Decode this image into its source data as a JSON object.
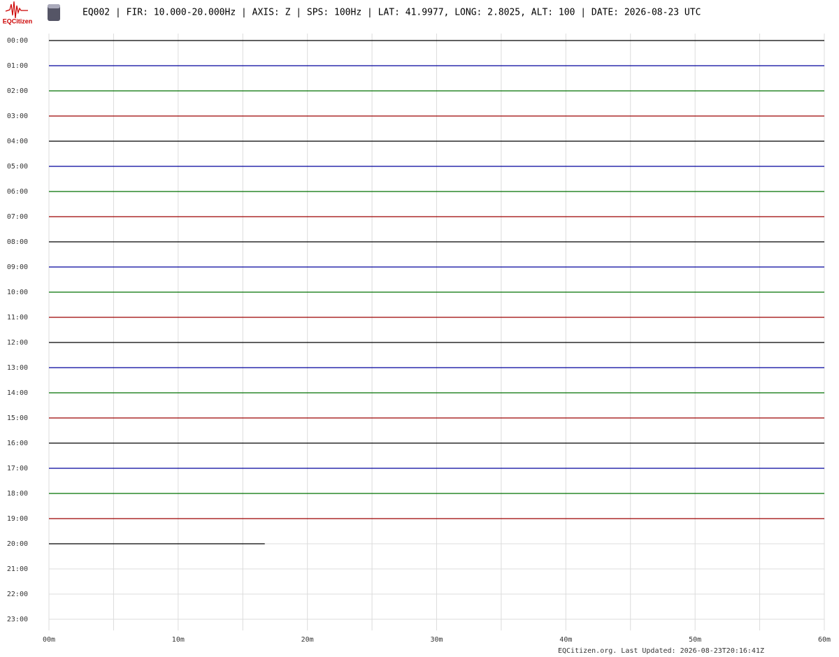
{
  "chart_data": {
    "type": "helicorder",
    "title": "EQ002 | FIR: 10.000-20.000Hz | AXIS: Z | SPS: 100Hz | LAT: 41.9977, LONG: 2.8025, ALT: 100 | DATE: 2026-08-23 UTC",
    "logo": "EQCitizen",
    "footer": "EQCitizen.org. Last Updated: 2026-08-23T20:16:41Z",
    "categories": [
      "00:00",
      "01:00",
      "02:00",
      "03:00",
      "04:00",
      "05:00",
      "06:00",
      "07:00",
      "08:00",
      "09:00",
      "10:00",
      "11:00",
      "12:00",
      "13:00",
      "14:00",
      "15:00",
      "16:00",
      "17:00",
      "18:00",
      "19:00",
      "20:00",
      "21:00",
      "22:00",
      "23:00"
    ],
    "trace_colors": [
      "#000000",
      "#00009c",
      "#007000",
      "#9c0000"
    ],
    "trace_end": [
      60,
      60,
      60,
      60,
      60,
      60,
      60,
      60,
      60,
      60,
      60,
      60,
      60,
      60,
      60,
      60,
      60,
      60,
      60,
      60,
      16.7,
      null,
      null,
      null
    ],
    "xlim": [
      0,
      60
    ],
    "xticks": [
      {
        "value": 0,
        "label": "00m"
      },
      {
        "value": 10,
        "label": "10m"
      },
      {
        "value": 20,
        "label": "20m"
      },
      {
        "value": 30,
        "label": "30m"
      },
      {
        "value": 40,
        "label": "40m"
      },
      {
        "value": 50,
        "label": "50m"
      },
      {
        "value": 60,
        "label": "60m"
      }
    ],
    "minor_xticks": [
      5,
      15,
      25,
      35,
      45,
      55
    ],
    "grid": true
  }
}
